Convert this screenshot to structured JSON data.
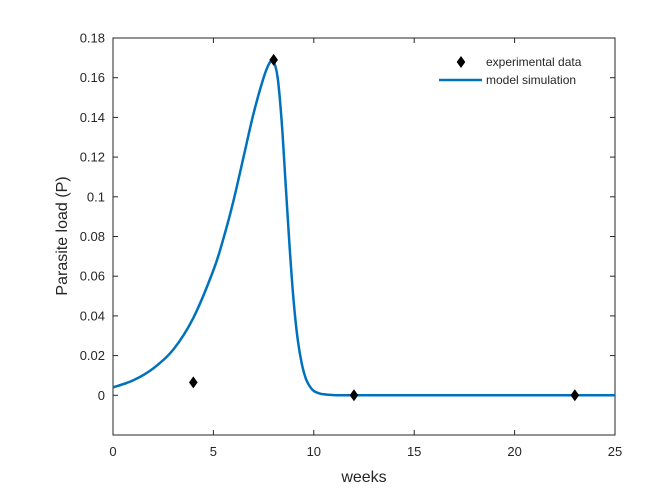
{
  "chart_data": {
    "type": "line",
    "title": "",
    "xlabel": "weeks",
    "ylabel": "Parasite load (P)",
    "xlim": [
      0,
      25
    ],
    "ylim": [
      -0.02,
      0.18
    ],
    "xticks": [
      0,
      5,
      10,
      15,
      20,
      25
    ],
    "yticks": [
      0,
      0.02,
      0.04,
      0.06,
      0.08,
      0.1,
      0.12,
      0.14,
      0.16,
      0.18
    ],
    "ytick_labels": [
      "0",
      "0.02",
      "0.04",
      "0.06",
      "0.08",
      "0.1",
      "0.12",
      "0.14",
      "0.16",
      "0.18"
    ],
    "grid": false,
    "legend_position": "top-right",
    "series": [
      {
        "name": "experimental data",
        "kind": "scatter",
        "marker": "diamond",
        "color": "#000000",
        "x": [
          4,
          8,
          12,
          23
        ],
        "y": [
          0.0065,
          0.169,
          0.0,
          0.0
        ]
      },
      {
        "name": "model simulation",
        "kind": "line",
        "color": "#0072BD",
        "x": [
          0,
          1,
          2,
          3,
          4,
          5,
          5.5,
          6,
          6.5,
          7,
          7.5,
          7.8,
          8.0,
          8.2,
          8.4,
          8.6,
          8.8,
          9.0,
          9.2,
          9.4,
          9.6,
          9.8,
          10.0,
          10.3,
          10.6,
          11,
          12,
          15,
          20,
          25
        ],
        "y": [
          0.004,
          0.0075,
          0.0135,
          0.023,
          0.039,
          0.063,
          0.079,
          0.098,
          0.12,
          0.142,
          0.16,
          0.1675,
          0.168,
          0.16,
          0.138,
          0.106,
          0.074,
          0.047,
          0.028,
          0.016,
          0.0085,
          0.0045,
          0.0022,
          0.0009,
          0.0004,
          0.0001,
          0.0,
          0.0,
          0.0,
          0.0
        ]
      }
    ]
  }
}
